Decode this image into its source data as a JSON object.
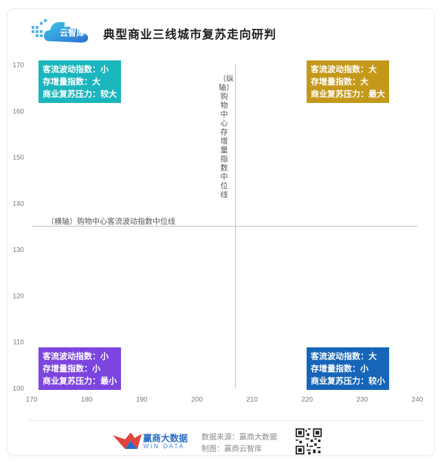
{
  "header": {
    "logo_text": "赢商\n云智库",
    "title": "典型商业三线城市复苏走向研判"
  },
  "chart_data": {
    "type": "scatter",
    "xlim": [
      170,
      240
    ],
    "ylim": [
      100,
      170
    ],
    "x_ticks": [
      170,
      180,
      190,
      200,
      210,
      220,
      230,
      240
    ],
    "y_ticks": [
      100,
      110,
      120,
      130,
      140,
      150,
      160,
      170
    ],
    "x_median": 207,
    "y_median": 135,
    "xlabel": "（横轴）购物中心客流波动指数中位线",
    "ylabel": "（纵轴）购物中心存增量指数中位线",
    "grid": false,
    "quadrants": [
      {
        "position": "top-left",
        "lines": [
          "客流波动指数：小",
          "存增量指数：大",
          "商业复苏压力：较大"
        ],
        "color": "#1bb6bd"
      },
      {
        "position": "top-right",
        "lines": [
          "客流波动指数：大",
          "存增量指数：大",
          "商业复苏压力：最大"
        ],
        "color": "#c4991a"
      },
      {
        "position": "bottom-left",
        "lines": [
          "客流波动指数：小",
          "存增量指数：小",
          "商业复苏压力：最小"
        ],
        "color": "#7d45df"
      },
      {
        "position": "bottom-right",
        "lines": [
          "客流波动指数：大",
          "存增量指数：小",
          "商业复苏压力：较小"
        ],
        "color": "#1665b8"
      }
    ]
  },
  "footer": {
    "brand_name": "赢商大数据",
    "brand_sub": "WIN DATA",
    "source": "数据来源：赢商大数据",
    "maker": "制图：赢商云智库"
  },
  "colors": {
    "axis_line": "#bdbdbd",
    "tick_text": "#7a7a7a"
  },
  "icons": {
    "logo": "cloud-logo-icon",
    "brand": "windata-bird-icon",
    "qr": "qr-code-icon"
  }
}
